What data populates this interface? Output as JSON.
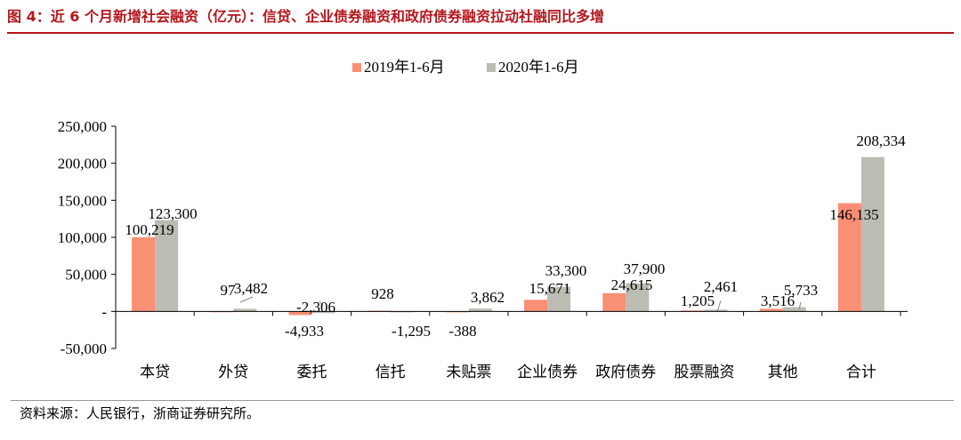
{
  "figure": {
    "title": "图 4：近 6 个月新增社会融资（亿元）：信贷、企业债券融资和政府债券融资拉动社融同比多增",
    "source": "资料来源：人民银行，浙商证券研究所。"
  },
  "chart_data": {
    "type": "bar",
    "categories": [
      "本贷",
      "外贷",
      "委托",
      "信托",
      "未贴票",
      "企业债券",
      "政府债券",
      "股票融资",
      "其他",
      "合计"
    ],
    "series": [
      {
        "name": "2019年1-6月",
        "values": [
          100219,
          97,
          -4933,
          928,
          -388,
          15671,
          24615,
          1205,
          3516,
          146135
        ],
        "color": "#f98f75"
      },
      {
        "name": "2020年1-6月",
        "values": [
          123300,
          3482,
          -2306,
          -1295,
          3862,
          33300,
          37900,
          2461,
          5733,
          208334
        ],
        "color": "#bcbcb3"
      }
    ],
    "ylim": [
      -50000,
      250000
    ],
    "yticks": [
      -50000,
      0,
      50000,
      100000,
      150000,
      200000,
      250000
    ],
    "ytick_labels": [
      "-50,000",
      "-",
      "50,000",
      "100,000",
      "150,000",
      "200,000",
      "250,000"
    ],
    "data_labels": [
      [
        "100,219",
        "97",
        "-4,933",
        "928",
        "-388",
        "15,671",
        "24,615",
        "1,205",
        "3,516",
        "146,135"
      ],
      [
        "123,300",
        "3,482",
        "-2,306",
        "-1,295",
        "3,862",
        "33,300",
        "37,900",
        "2,461",
        "5,733",
        "208,334"
      ]
    ],
    "xlabel": "",
    "ylabel": "",
    "legend_position": "top-center",
    "grid": false
  }
}
